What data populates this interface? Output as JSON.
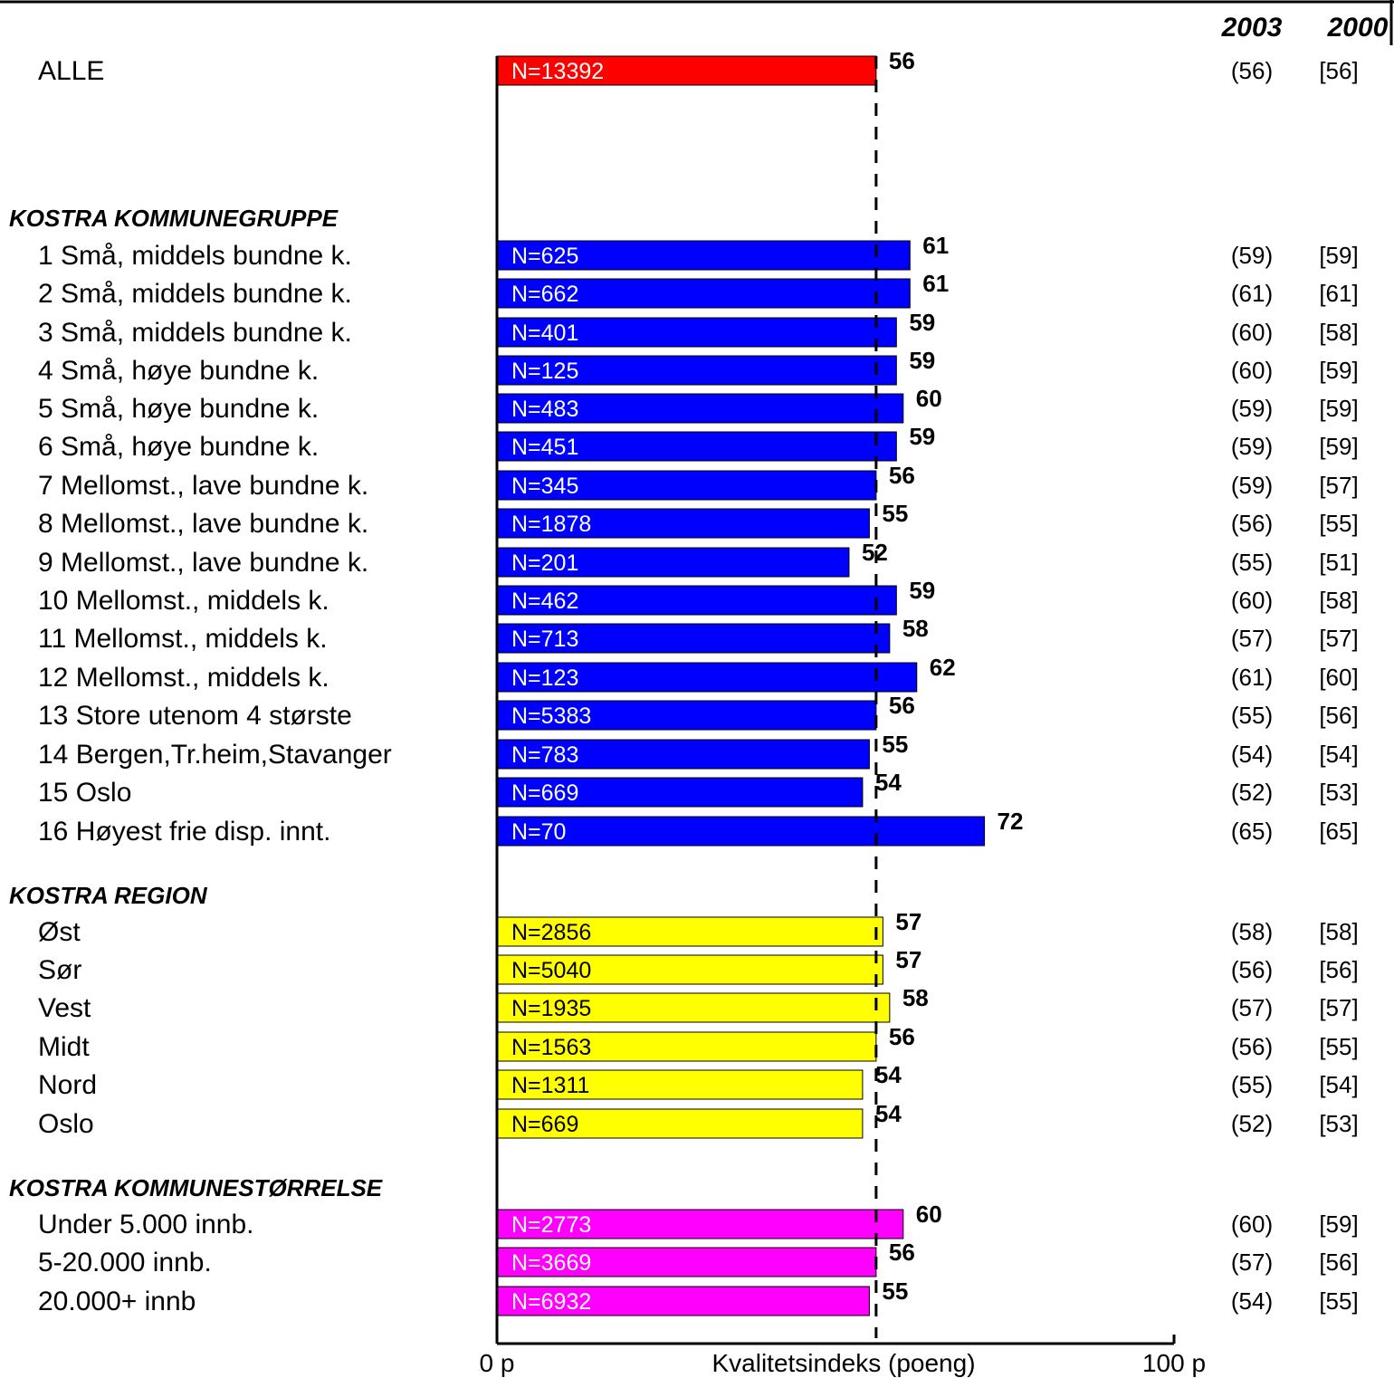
{
  "chart_data": {
    "type": "bar",
    "orientation": "horizontal",
    "xlabel": "Kvalitetsindeks   (poeng)",
    "xlim": [
      0,
      100
    ],
    "x_tick_labels": [
      "0 p",
      "100 p"
    ],
    "reference_value": 56,
    "column_headers": [
      "2003",
      "2000"
    ],
    "colors": {
      "all": "#ff0000",
      "kommunegruppe": "#0000ff",
      "region": "#ffff00",
      "storrelse": "#ff00ff"
    },
    "groups": [
      {
        "key": "all",
        "header": "",
        "rows": [
          {
            "label": "ALLE",
            "n": "N=13392",
            "value": 56,
            "prev2003": "(56)",
            "prev2000": "[56]"
          }
        ]
      },
      {
        "key": "kommunegruppe",
        "header": "KOSTRA KOMMUNEGRUPPE",
        "rows": [
          {
            "label": "1 Små, middels bundne k.",
            "n": "N=625",
            "value": 61,
            "prev2003": "(59)",
            "prev2000": "[59]"
          },
          {
            "label": "2 Små,   middels bundne k.",
            "n": "N=662",
            "value": 61,
            "prev2003": "(61)",
            "prev2000": "[61]"
          },
          {
            "label": "3 Små, middels bundne k.",
            "n": "N=401",
            "value": 59,
            "prev2003": "(60)",
            "prev2000": "[58]"
          },
          {
            "label": "4 Små, høye bundne k.",
            "n": "N=125",
            "value": 59,
            "prev2003": "(60)",
            "prev2000": "[59]"
          },
          {
            "label": "5 Små, høye bundne k.",
            "n": "N=483",
            "value": 60,
            "prev2003": "(59)",
            "prev2000": "[59]"
          },
          {
            "label": "6 Små, høye bundne k.",
            "n": "N=451",
            "value": 59,
            "prev2003": "(59)",
            "prev2000": "[59]"
          },
          {
            "label": "7 Mellomst., lave bundne k.",
            "n": "N=345",
            "value": 56,
            "prev2003": "(59)",
            "prev2000": "[57]"
          },
          {
            "label": "8 Mellomst., lave bundne k.",
            "n": "N=1878",
            "value": 55,
            "prev2003": "(56)",
            "prev2000": "[55]"
          },
          {
            "label": "9 Mellomst., lave bundne k.",
            "n": "N=201",
            "value": 52,
            "prev2003": "(55)",
            "prev2000": "[51]"
          },
          {
            "label": "10 Mellomst., middels k.",
            "n": "N=462",
            "value": 59,
            "prev2003": "(60)",
            "prev2000": "[58]"
          },
          {
            "label": "11 Mellomst., middels k.",
            "n": "N=713",
            "value": 58,
            "prev2003": "(57)",
            "prev2000": "[57]"
          },
          {
            "label": "12 Mellomst., middels k.",
            "n": "N=123",
            "value": 62,
            "prev2003": "(61)",
            "prev2000": "[60]"
          },
          {
            "label": "13 Store utenom 4 største",
            "n": "N=5383",
            "value": 56,
            "prev2003": "(55)",
            "prev2000": "[56]"
          },
          {
            "label": "14 Bergen,Tr.heim,Stavanger",
            "n": "N=783",
            "value": 55,
            "prev2003": "(54)",
            "prev2000": "[54]"
          },
          {
            "label": "15 Oslo",
            "n": "N=669",
            "value": 54,
            "prev2003": "(52)",
            "prev2000": "[53]"
          },
          {
            "label": "16 Høyest frie   disp. innt.",
            "n": "N=70",
            "value": 72,
            "prev2003": "(65)",
            "prev2000": "[65]"
          }
        ]
      },
      {
        "key": "region",
        "header": "KOSTRA REGION",
        "rows": [
          {
            "label": "Øst",
            "n": "N=2856",
            "value": 57,
            "prev2003": "(58)",
            "prev2000": "[58]"
          },
          {
            "label": "Sør",
            "n": "N=5040",
            "value": 57,
            "prev2003": "(56)",
            "prev2000": "[56]"
          },
          {
            "label": "Vest",
            "n": "N=1935",
            "value": 58,
            "prev2003": "(57)",
            "prev2000": "[57]"
          },
          {
            "label": "Midt",
            "n": "N=1563",
            "value": 56,
            "prev2003": "(56)",
            "prev2000": "[55]"
          },
          {
            "label": "Nord",
            "n": "N=1311",
            "value": 54,
            "prev2003": "(55)",
            "prev2000": "[54]"
          },
          {
            "label": "Oslo",
            "n": "N=669",
            "value": 54,
            "prev2003": "(52)",
            "prev2000": "[53]"
          }
        ]
      },
      {
        "key": "storrelse",
        "header": "KOSTRA KOMMUNESTØRRELSE",
        "rows": [
          {
            "label": "Under 5.000 innb.",
            "n": "N=2773",
            "value": 60,
            "prev2003": "(60)",
            "prev2000": "[59]"
          },
          {
            "label": "5-20.000 innb.",
            "n": "N=3669",
            "value": 56,
            "prev2003": "(57)",
            "prev2000": "[56]"
          },
          {
            "label": "20.000+ innb",
            "n": "N=6932",
            "value": 55,
            "prev2003": "(54)",
            "prev2000": "[55]"
          }
        ]
      }
    ]
  }
}
